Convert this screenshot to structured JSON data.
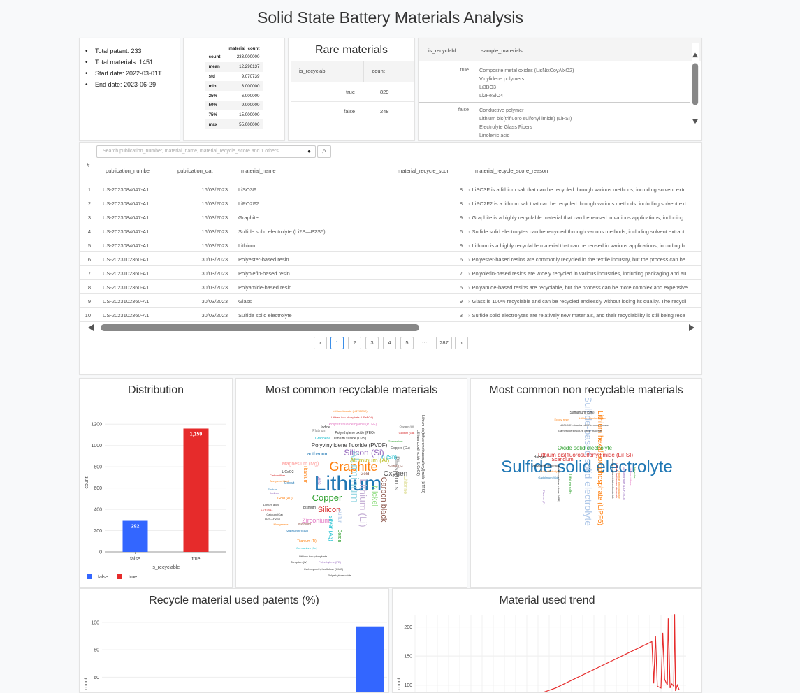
{
  "page": {
    "title": "Solid State Battery Materials Analysis"
  },
  "stats": [
    "Total patent: 233",
    "Total materials: 1451",
    "Start date: 2022-03-01T",
    "End date: 2023-06-29"
  ],
  "describe": {
    "header": "material_count",
    "rows": [
      {
        "label": "count",
        "value": "233.000000"
      },
      {
        "label": "mean",
        "value": "12.296137"
      },
      {
        "label": "std",
        "value": "9.070739"
      },
      {
        "label": "min",
        "value": "3.000000"
      },
      {
        "label": "25%",
        "value": "6.000000"
      },
      {
        "label": "50%",
        "value": "9.000000"
      },
      {
        "label": "75%",
        "value": "15.000000"
      },
      {
        "label": "max",
        "value": "55.000000"
      }
    ]
  },
  "rare": {
    "title": "Rare materials",
    "col1": "is_recyclabl",
    "col2": "count",
    "rows": [
      {
        "key": "true",
        "count": "829"
      },
      {
        "key": "false",
        "count": "248"
      }
    ]
  },
  "samples": {
    "col1": "is_recyclabl",
    "col2": "sample_materials",
    "groups": [
      {
        "key": "true",
        "items": [
          "Composite metal oxides (LisNixCoyAlxO2)",
          "Vinylidene polymers",
          "Li3BO3",
          "Li2FeSiO4"
        ]
      },
      {
        "key": "false",
        "items": [
          "Conductive polymer",
          "Lithium bis(trifluoro sulfonyl imide) (LiFSI)",
          "Electrolyte Glass Fibers",
          "Linolenic acid"
        ]
      }
    ]
  },
  "grid": {
    "search_placeholder": "Search publication_number, material_name, material_recycle_score and 1 others...",
    "info_glyph": "●",
    "search_icon": "⌕",
    "headers": {
      "index": "#",
      "pub": "publication_numbe",
      "date": "publication_dat",
      "name": "material_name",
      "score": "material_recycle_scor",
      "reason": "material_recycle_score_reason"
    },
    "rows": [
      {
        "i": "1",
        "pub": "US-2023084047-A1",
        "date": "16/03/2023",
        "name": "LiSO3F",
        "score": "8",
        "reason": "LiSO3F is a lithium salt that can be recycled through various methods, including solvent extr"
      },
      {
        "i": "2",
        "pub": "US-2023084047-A1",
        "date": "16/03/2023",
        "name": "LiPO2F2",
        "score": "8",
        "reason": "LiPO2F2 is a lithium salt that can be recycled through various methods, including solvent ext"
      },
      {
        "i": "3",
        "pub": "US-2023084047-A1",
        "date": "16/03/2023",
        "name": "Graphite",
        "score": "9",
        "reason": "Graphite is a highly recyclable material that can be reused in various applications, including"
      },
      {
        "i": "4",
        "pub": "US-2023084047-A1",
        "date": "16/03/2023",
        "name": "Sulfide solid electrolyte (Li2S—P2S5)",
        "score": "6",
        "reason": "Sulfide solid electrolytes can be recycled through various methods, including solvent extract"
      },
      {
        "i": "5",
        "pub": "US-2023084047-A1",
        "date": "16/03/2023",
        "name": "Lithium",
        "score": "9",
        "reason": "Lithium is a highly recyclable material that can be reused in various applications, including b"
      },
      {
        "i": "6",
        "pub": "US-2023102360-A1",
        "date": "30/03/2023",
        "name": "Polyester-based resin",
        "score": "6",
        "reason": "Polyester-based resins are commonly recycled in the textile industry, but the process can be"
      },
      {
        "i": "7",
        "pub": "US-2023102360-A1",
        "date": "30/03/2023",
        "name": "Polyolefin-based resin",
        "score": "7",
        "reason": "Polyolefin-based resins are widely recycled in various industries, including packaging and au"
      },
      {
        "i": "8",
        "pub": "US-2023102360-A1",
        "date": "30/03/2023",
        "name": "Polyamide-based resin",
        "score": "5",
        "reason": "Polyamide-based resins are recyclable, but the process can be more complex and expensive"
      },
      {
        "i": "9",
        "pub": "US-2023102360-A1",
        "date": "30/03/2023",
        "name": "Glass",
        "score": "9",
        "reason": "Glass is 100% recyclable and can be recycled endlessly without losing its quality. The recycli"
      },
      {
        "i": "10",
        "pub": "US-2023102360-A1",
        "date": "30/03/2023",
        "name": "Sulfide solid electrolyte",
        "score": "3",
        "reason": "Sulfide solid electrolytes are relatively new materials, and their recyclability is still being rese"
      }
    ],
    "pager": {
      "prev": "‹",
      "next": "›",
      "pages": [
        "1",
        "2",
        "3",
        "4",
        "5"
      ],
      "ellipsis": "···",
      "last": "287",
      "active": "1"
    }
  },
  "distribution": {
    "title": "Distribution",
    "chart_data": {
      "type": "bar",
      "categories": [
        "false",
        "true"
      ],
      "values": [
        292,
        1159
      ],
      "data_labels": [
        "292",
        "1,159"
      ],
      "colors": [
        "#3366ff",
        "#e62b2b"
      ],
      "xlabel": "is_recyclable",
      "ylabel": "count",
      "ylim": [
        0,
        1300
      ],
      "yticks": [
        "0",
        "200",
        "400",
        "600",
        "800",
        "1000",
        "1200"
      ],
      "legend": [
        "false",
        "true"
      ],
      "legend_position": "bottom-left",
      "grid": true
    }
  },
  "wordcloud_recyclable": {
    "title": "Most common recyclable materials",
    "words": [
      {
        "text": "Lithium",
        "color": "#1f77b4",
        "size": 30
      },
      {
        "text": "Graphite",
        "color": "#ff7f0e",
        "size": 18
      },
      {
        "text": "Aluminum",
        "color": "#9edae5",
        "size": 17
      },
      {
        "text": "Lithium (Li)",
        "color": "#c5b0d5",
        "size": 14
      },
      {
        "text": "Copper",
        "color": "#2ca02c",
        "size": 13
      },
      {
        "text": "Silicon (Si)",
        "color": "#9467bd",
        "size": 12
      },
      {
        "text": "Silicon",
        "color": "#d62728",
        "size": 11
      },
      {
        "text": "Oxygen",
        "color": "#555555",
        "size": 10
      },
      {
        "text": "Nickel",
        "color": "#98df8a",
        "size": 11
      },
      {
        "text": "Carbon black",
        "color": "#8c564b",
        "size": 11
      },
      {
        "text": "Phosphorus",
        "color": "#7f7f7f",
        "size": 9
      },
      {
        "text": "Zirconium",
        "color": "#e377c2",
        "size": 9
      },
      {
        "text": "Aluminum (Al)",
        "color": "#bcbd22",
        "size": 9
      },
      {
        "text": "Polyvinylidene fluoride (PVDF)",
        "color": "#333333",
        "size": 8
      },
      {
        "text": "Tin (Sn)",
        "color": "#17becf",
        "size": 8
      },
      {
        "text": "Magnesium (Mg)",
        "color": "#ff9896",
        "size": 7
      },
      {
        "text": "Lanthanum",
        "color": "#1f77b4",
        "size": 7
      },
      {
        "text": "Titanium",
        "color": "#ff7f0e",
        "size": 7
      },
      {
        "text": "Sulfur",
        "color": "#aec7e8",
        "size": 8
      },
      {
        "text": "Chlorine",
        "color": "#dbdb8d",
        "size": 7
      },
      {
        "text": "Zinc",
        "color": "#9467bd",
        "size": 6
      },
      {
        "text": "Gold",
        "color": "#8c564b",
        "size": 6
      },
      {
        "text": "Polyethylene oxide (PEO)",
        "color": "#333333",
        "size": 5
      },
      {
        "text": "Lithium sulfide (Li2S)",
        "color": "#333333",
        "size": 5
      },
      {
        "text": "Polytetrafluoroethylene (PTFE)",
        "color": "#e377c2",
        "size": 5
      },
      {
        "text": "Lithium iron phosphate (LiFePO4)",
        "color": "#d62728",
        "size": 4
      },
      {
        "text": "Lithium titanate (Li4Ti5O12)",
        "color": "#ff7f0e",
        "size": 4
      },
      {
        "text": "Platinum",
        "color": "#7f7f7f",
        "size": 5
      },
      {
        "text": "Iodine",
        "color": "#333333",
        "size": 5
      },
      {
        "text": "Graphene",
        "color": "#17becf",
        "size": 5
      },
      {
        "text": "Oxygen (O)",
        "color": "#555555",
        "size": 4
      },
      {
        "text": "Gallium (Ga)",
        "color": "#d62728",
        "size": 4
      },
      {
        "text": "Germanium",
        "color": "#2ca02c",
        "size": 4
      },
      {
        "text": "Copper (Cu)",
        "color": "#555555",
        "size": 5
      },
      {
        "text": "Sulfur (S)",
        "color": "#8c564b",
        "size": 5
      },
      {
        "text": "LiCoO2",
        "color": "#333333",
        "size": 5
      },
      {
        "text": "Cobalt",
        "color": "#1f77b4",
        "size": 5
      },
      {
        "text": "Carbon fiber",
        "color": "#d62728",
        "size": 4
      },
      {
        "text": "Acetylene black",
        "color": "#ff7f0e",
        "size": 4
      },
      {
        "text": "Sodium",
        "color": "#1f77b4",
        "size": 4
      },
      {
        "text": "Indium",
        "color": "#9467bd",
        "size": 4
      },
      {
        "text": "Gold (Au)",
        "color": "#ff7f0e",
        "size": 5
      },
      {
        "text": "Bismuth",
        "color": "#333333",
        "size": 5
      },
      {
        "text": "Lithium alloy",
        "color": "#333333",
        "size": 4
      },
      {
        "text": "Li7P3S11",
        "color": "#d62728",
        "size": 4
      },
      {
        "text": "Calcium (Ca)",
        "color": "#333333",
        "size": 4
      },
      {
        "text": "Li2S—P2S5",
        "color": "#333333",
        "size": 4
      },
      {
        "text": "Manganese",
        "color": "#ff7f0e",
        "size": 4
      },
      {
        "text": "Niobium",
        "color": "#8c564b",
        "size": 5
      },
      {
        "text": "Stainless steel",
        "color": "#1f77b4",
        "size": 5
      },
      {
        "text": "Titanium (Ti)",
        "color": "#ff7f0e",
        "size": 5
      },
      {
        "text": "Germanium (Ge)",
        "color": "#17becf",
        "size": 4
      },
      {
        "text": "Lithium iron phosphate",
        "color": "#333333",
        "size": 4
      },
      {
        "text": "Tungsten (W)",
        "color": "#333333",
        "size": 4
      },
      {
        "text": "Polyethylene (PE)",
        "color": "#9467bd",
        "size": 4
      },
      {
        "text": "Carboxymethyl cellulose (CMC)",
        "color": "#333333",
        "size": 4
      },
      {
        "text": "Polyethylene oxide",
        "color": "#333333",
        "size": 4
      },
      {
        "text": "Silver (Ag)",
        "color": "#17becf",
        "size": 8
      },
      {
        "text": "Boron",
        "color": "#2ca02c",
        "size": 7
      },
      {
        "text": "Lithium bis(trifluoromethanesulfonyl)imide (LiTFSI)",
        "color": "#333333",
        "size": 5
      },
      {
        "text": "Lithium cobalt oxide (LiCoO2)",
        "color": "#333333",
        "size": 5
      }
    ]
  },
  "wordcloud_nonrecyclable": {
    "title": "Most common non recyclable materials",
    "words": [
      {
        "text": "Sulfide solid electrolyte",
        "color": "#1f77b4",
        "size": 24
      },
      {
        "text": "Sulfide-based solid electrolyte",
        "color": "#aec7e8",
        "size": 14
      },
      {
        "text": "Lithium hexafluorophosphate (LiPF6)",
        "color": "#ff7f0e",
        "size": 10
      },
      {
        "text": "Lithium bis(fluorosulfonyl)imide (LiFSI)",
        "color": "#d62728",
        "size": 8
      },
      {
        "text": "Oxide solid electrolyte",
        "color": "#2ca02c",
        "size": 8
      },
      {
        "text": "Scandium",
        "color": "#d62728",
        "size": 7
      },
      {
        "text": "Samarium (Sm)",
        "color": "#333333",
        "size": 5
      },
      {
        "text": "Lithium titanium oxide",
        "color": "#ff7f0e",
        "size": 4
      },
      {
        "text": "Epoxy resin",
        "color": "#ff7f0e",
        "size": 4
      },
      {
        "text": "NASICON-structured lithium membrane",
        "color": "#333333",
        "size": 4
      },
      {
        "text": "Garnet-like structure oxide material",
        "color": "#333333",
        "size": 4
      },
      {
        "text": "Halogen",
        "color": "#333333",
        "size": 5
      },
      {
        "text": "Argyrodites materials",
        "color": "#333333",
        "size": 4
      },
      {
        "text": "Solid electrolyte",
        "color": "#ff7f0e",
        "size": 4
      },
      {
        "text": "Gadolinium (Gd)",
        "color": "#1f77b4",
        "size": 4
      },
      {
        "text": "Lithium salts",
        "color": "#2ca02c",
        "size": 5
      },
      {
        "text": "Fluorine (F)",
        "color": "#9467bd",
        "size": 4
      },
      {
        "text": "Nitrile butadiene rubber (NBR)",
        "color": "#333333",
        "size": 4
      },
      {
        "text": "Lithium lanthanum zirconate",
        "color": "#d62728",
        "size": 4
      },
      {
        "text": "Lithium triflate (LiCF3SO3)",
        "color": "#9467bd",
        "size": 4
      },
      {
        "text": "Acid peroxide-obtained materials",
        "color": "#333333",
        "size": 4
      },
      {
        "text": "Fluoride ion conductor",
        "color": "#ff7f0e",
        "size": 4
      },
      {
        "text": "Lithium triflate",
        "color": "#e377c2",
        "size": 4
      },
      {
        "text": "Polyester",
        "color": "#2ca02c",
        "size": 4
      }
    ]
  },
  "patents_chart": {
    "title": "Recycle material used patents (%)",
    "chart_data": {
      "type": "bar",
      "categories": [
        "true"
      ],
      "values": [
        97
      ],
      "ylabel": "count",
      "yticks": [
        "60",
        "80",
        "100"
      ],
      "ylim_visible": [
        50,
        105
      ],
      "color": "#3366ff",
      "grid": true
    }
  },
  "trend_chart": {
    "title": "Material used trend",
    "chart_data": {
      "type": "line",
      "ylabel": "count",
      "yticks": [
        "100",
        "150",
        "200"
      ],
      "ylim_visible": [
        90,
        220
      ],
      "color": "#e62b2b",
      "points": [
        [
          0.0,
          60
        ],
        [
          0.32,
          95
        ],
        [
          0.85,
          175
        ],
        [
          0.86,
          103
        ],
        [
          0.87,
          185
        ],
        [
          0.88,
          98
        ],
        [
          0.9,
          95
        ],
        [
          0.91,
          190
        ],
        [
          0.92,
          110
        ],
        [
          0.935,
          100
        ],
        [
          0.94,
          215
        ],
        [
          0.95,
          95
        ],
        [
          0.96,
          102
        ],
        [
          0.97,
          98
        ],
        [
          0.975,
          222
        ],
        [
          0.98,
          90
        ],
        [
          0.99,
          100
        ],
        [
          1.0,
          92
        ]
      ]
    }
  }
}
